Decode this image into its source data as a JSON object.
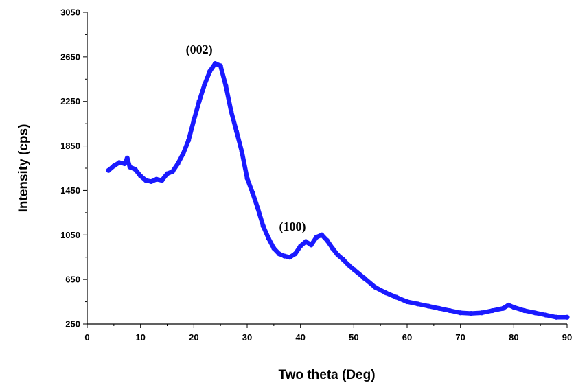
{
  "chart_data": {
    "type": "line",
    "title": "",
    "xlabel": "Two theta (Deg)",
    "ylabel": "Intensity  (cps)",
    "xlim": [
      0,
      90
    ],
    "ylim": [
      250,
      3050
    ],
    "xticks": [
      0,
      10,
      20,
      30,
      40,
      50,
      60,
      70,
      80,
      90
    ],
    "yticks": [
      250,
      650,
      1050,
      1450,
      1850,
      2250,
      2650,
      3050
    ],
    "grid": false,
    "legend": "none",
    "line_color": "#1a1aff",
    "annotations": [
      {
        "text": "(002)",
        "x": 21,
        "y": 2680
      },
      {
        "text": "(100)",
        "x": 38.5,
        "y": 1090
      }
    ],
    "series": [
      {
        "x": [
          4,
          5,
          6,
          7,
          7.5,
          8,
          9,
          10,
          11,
          12,
          13,
          14,
          15,
          16,
          17,
          18,
          19,
          20,
          21,
          22,
          23,
          24,
          25,
          26,
          27,
          28,
          29,
          30,
          31,
          32,
          33,
          34,
          35,
          36,
          37,
          38,
          39,
          40,
          41,
          42,
          43,
          44,
          45,
          46,
          47,
          48,
          49,
          50,
          52,
          54,
          56,
          58,
          60,
          62,
          64,
          66,
          68,
          70,
          72,
          74,
          76,
          78,
          79,
          80,
          82,
          84,
          86,
          88,
          90
        ],
        "y": [
          1630,
          1670,
          1700,
          1690,
          1740,
          1660,
          1640,
          1580,
          1540,
          1530,
          1550,
          1540,
          1600,
          1620,
          1690,
          1780,
          1900,
          2080,
          2250,
          2400,
          2520,
          2590,
          2570,
          2390,
          2160,
          1980,
          1800,
          1560,
          1430,
          1290,
          1130,
          1020,
          930,
          880,
          860,
          850,
          880,
          950,
          990,
          960,
          1030,
          1050,
          1000,
          930,
          870,
          830,
          780,
          740,
          660,
          580,
          530,
          490,
          450,
          430,
          410,
          390,
          370,
          350,
          345,
          350,
          370,
          390,
          420,
          400,
          370,
          350,
          330,
          310,
          310
        ]
      }
    ]
  }
}
